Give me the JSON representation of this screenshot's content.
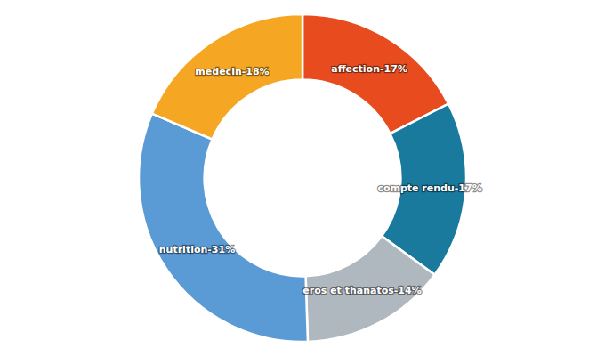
{
  "chart_data": {
    "type": "pie",
    "categories": [
      "affection",
      "compte rendu",
      "eros et thanatos",
      "nutrition",
      "medecin"
    ],
    "values": [
      17,
      17,
      14,
      31,
      18
    ],
    "value_labels": [
      "affection-17%",
      "compte rendu-17%",
      "eros et thanatos-14%",
      "nutrition-31%",
      "medecin-18%"
    ],
    "colors": [
      "#e84c1e",
      "#1a7a9e",
      "#b0b8bf",
      "#5b9bd5",
      "#f5a623"
    ],
    "data_labels": true
  }
}
